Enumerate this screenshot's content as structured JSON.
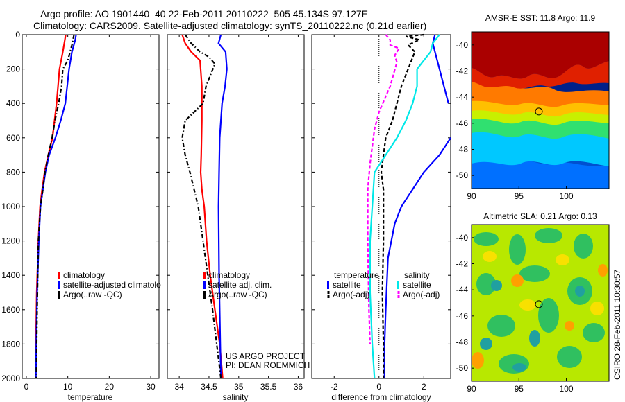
{
  "header": {
    "line1": "Argo profile: AO 1901440_40 22-Feb-2011 20110222_505 45.134S 97.127E",
    "line2": "Climatology: CARS2009. Satellite-adjusted climatology: synTS_20110222.nc (0.21d earlier)"
  },
  "side_label": "CSIRO 28-Feb-2011 10:30:57",
  "project_label": [
    "US ARGO PROJECT",
    "PI: DEAN ROEMMICH"
  ],
  "colors": {
    "red": "#ff0000",
    "blue": "#0000ff",
    "black": "#000000",
    "cyan": "#00e8e8",
    "magenta": "#ff00ff"
  },
  "chart_data": [
    {
      "type": "line",
      "xlabel": "temperature",
      "xlim": [
        -1,
        32
      ],
      "ylim": [
        2000,
        0
      ],
      "xticks": [
        0,
        10,
        20,
        30
      ],
      "yticks": [
        0,
        200,
        400,
        600,
        800,
        1000,
        1200,
        1400,
        1600,
        1800,
        2000
      ],
      "legend": [
        {
          "label": "climatology",
          "color": "#ff0000"
        },
        {
          "label": "satellite-adjusted climatolo",
          "color": "#0000ff"
        },
        {
          "label": "Argo(..raw -QC)",
          "color": "#000000"
        }
      ],
      "series": [
        {
          "name": "climatology",
          "color": "#ff0000",
          "dash": "",
          "x": [
            9.5,
            8.8,
            8.0,
            7.3,
            6.3,
            5.3,
            4.4,
            3.8,
            3.3,
            2.9,
            2.5,
            2.3,
            2.2
          ],
          "y": [
            0,
            100,
            200,
            400,
            600,
            700,
            800,
            900,
            1000,
            1200,
            1500,
            1800,
            2000
          ]
        },
        {
          "name": "satellite-adjusted climatology",
          "color": "#0000ff",
          "dash": "",
          "x": [
            12.0,
            11.8,
            11.0,
            10.3,
            9.4,
            8.3,
            7.0,
            5.5,
            4.6,
            4.0,
            3.4,
            3.0,
            2.6,
            2.4,
            2.3
          ],
          "y": [
            0,
            30,
            100,
            200,
            400,
            500,
            600,
            700,
            800,
            900,
            1000,
            1200,
            1500,
            1800,
            2000
          ]
        },
        {
          "name": "Argo(..raw -QC)",
          "color": "#000000",
          "dash": "6,3,1.5,3",
          "x": [
            11.5,
            11.0,
            10.0,
            8.8,
            8.5,
            7.8,
            6.9,
            6.2,
            5.3,
            4.5,
            4.0,
            3.4,
            2.9,
            2.6,
            2.4
          ],
          "y": [
            0,
            60,
            150,
            200,
            300,
            400,
            500,
            600,
            700,
            800,
            900,
            1000,
            1200,
            1600,
            2000
          ]
        }
      ]
    },
    {
      "type": "line",
      "xlabel": "salinity",
      "xlim": [
        33.8,
        36.1
      ],
      "ylim": [
        2000,
        0
      ],
      "xticks": [
        34,
        34.5,
        35,
        35.5,
        36
      ],
      "yticks": [
        0,
        200,
        400,
        600,
        800,
        1000,
        1200,
        1400,
        1600,
        1800,
        2000
      ],
      "legend": [
        {
          "label": "climatology",
          "color": "#ff0000"
        },
        {
          "label": "satellite adj. clim.",
          "color": "#0000ff"
        },
        {
          "label": "Argo(..raw -QC)",
          "color": "#000000"
        }
      ],
      "series": [
        {
          "name": "climatology",
          "color": "#ff0000",
          "dash": "",
          "x": [
            34.05,
            34.1,
            34.2,
            34.35,
            34.38,
            34.38,
            34.37,
            34.36,
            34.38,
            34.42,
            34.46,
            34.52,
            34.6,
            34.68,
            34.73
          ],
          "y": [
            0,
            50,
            100,
            150,
            300,
            500,
            700,
            800,
            900,
            1000,
            1200,
            1400,
            1600,
            1800,
            2000
          ]
        },
        {
          "name": "satellite adj. clim.",
          "color": "#0000ff",
          "dash": "",
          "x": [
            34.7,
            34.66,
            34.78,
            34.8,
            34.77,
            34.72,
            34.7,
            34.68,
            34.67,
            34.66,
            34.67,
            34.69,
            34.7
          ],
          "y": [
            0,
            50,
            100,
            200,
            300,
            400,
            500,
            600,
            800,
            1000,
            1400,
            1800,
            2000
          ]
        },
        {
          "name": "Argo(..raw -QC)",
          "color": "#000000",
          "dash": "6,3,1.5,3",
          "x": [
            34.1,
            34.2,
            34.35,
            34.5,
            34.6,
            34.45,
            34.4,
            34.1,
            34.05,
            34.1,
            34.18,
            34.25,
            34.32,
            34.4,
            34.48,
            34.56,
            34.63,
            34.7
          ],
          "y": [
            0,
            50,
            100,
            130,
            170,
            300,
            400,
            500,
            600,
            700,
            800,
            900,
            1000,
            1200,
            1400,
            1600,
            1800,
            2000
          ]
        }
      ]
    },
    {
      "type": "line",
      "xlabel": "difference from climatology",
      "xlim": [
        -3,
        3.2
      ],
      "ylim": [
        2000,
        0
      ],
      "xticks": [
        -2,
        0,
        2
      ],
      "yticks": [
        0,
        200,
        400,
        600,
        800,
        1000,
        1200,
        1400,
        1600,
        1800,
        2000
      ],
      "legend_groups": [
        {
          "title": "temperature",
          "items": [
            {
              "label": "satellite",
              "color": "#0000ff",
              "dash": ""
            },
            {
              "label": "Argo(-adj)",
              "color": "#000000",
              "dash": "5,3"
            }
          ]
        },
        {
          "title": "salinity",
          "items": [
            {
              "label": "satellite",
              "color": "#00e8e8",
              "dash": ""
            },
            {
              "label": "Argo(-adj)",
              "color": "#ff00ff",
              "dash": "5,3"
            }
          ]
        }
      ],
      "series": [
        {
          "name": "temperature satellite",
          "color": "#0000ff",
          "dash": "",
          "x": [
            2.5,
            2.4,
            2.5,
            2.7,
            2.9,
            3.1
          ],
          "y": [
            0,
            50,
            100,
            200,
            300,
            400
          ]
        },
        {
          "name": "temperature satellite (deep)",
          "color": "#0000ff",
          "dash": "",
          "x": [
            3.2,
            2.7,
            2.0,
            1.5,
            1.0,
            0.7,
            0.4,
            0.3,
            0.25,
            0.25
          ],
          "y": [
            600,
            700,
            800,
            900,
            1000,
            1100,
            1300,
            1600,
            1800,
            2000
          ]
        },
        {
          "name": "temperature Argo(-adj)",
          "color": "#000000",
          "dash": "5,3",
          "x": [
            2.0,
            1.2,
            1.8,
            1.3,
            1.6,
            1.3,
            1.0,
            0.6,
            0.3,
            0.2,
            0.1,
            0.2,
            0.2,
            0.15,
            0.2,
            0.2
          ],
          "y": [
            0,
            10,
            30,
            60,
            100,
            200,
            300,
            500,
            600,
            700,
            800,
            900,
            1200,
            1500,
            1800,
            2000
          ]
        },
        {
          "name": "salinity satellite",
          "color": "#00e8e8",
          "dash": "",
          "x": [
            2.7,
            2.4,
            2.3,
            2.0,
            1.7,
            1.7,
            1.5,
            1.2,
            0.8,
            0.3,
            -0.2,
            -0.3,
            -0.4,
            -0.4,
            -0.3,
            -0.2
          ],
          "y": [
            0,
            50,
            100,
            150,
            200,
            300,
            400,
            500,
            600,
            700,
            800,
            1000,
            1200,
            1500,
            1800,
            2000
          ]
        },
        {
          "name": "salinity Argo(-adj)",
          "color": "#ff00ff",
          "dash": "5,3",
          "x": [
            0.3,
            0.5,
            0.5,
            0.9,
            0.7,
            0.8,
            0.5,
            0.0,
            -0.2,
            -0.3,
            -0.4,
            -0.5,
            -0.5,
            -0.45,
            -0.4
          ],
          "y": [
            0,
            30,
            60,
            80,
            120,
            160,
            300,
            450,
            550,
            650,
            750,
            900,
            1200,
            1600,
            1800
          ]
        }
      ]
    }
  ],
  "maps": [
    {
      "title": "AMSR-E SST: 11.8 Argo: 11.9",
      "xlim": [
        90,
        104.5
      ],
      "ylim": [
        -51,
        -39
      ],
      "xticks": [
        90,
        95,
        100
      ],
      "yticks": [
        -40,
        -42,
        -44,
        -46,
        -48,
        -50
      ],
      "marker": {
        "lon": 97.1,
        "lat": -45.1
      }
    },
    {
      "title": "Altimetric SLA: 0.21 Argo: 0.13",
      "xlim": [
        90,
        104.5
      ],
      "ylim": [
        -51,
        -39
      ],
      "xticks": [
        90,
        95,
        100
      ],
      "yticks": [
        -40,
        -42,
        -44,
        -46,
        -48,
        -50
      ],
      "marker": {
        "lon": 97.1,
        "lat": -45.1
      }
    }
  ]
}
